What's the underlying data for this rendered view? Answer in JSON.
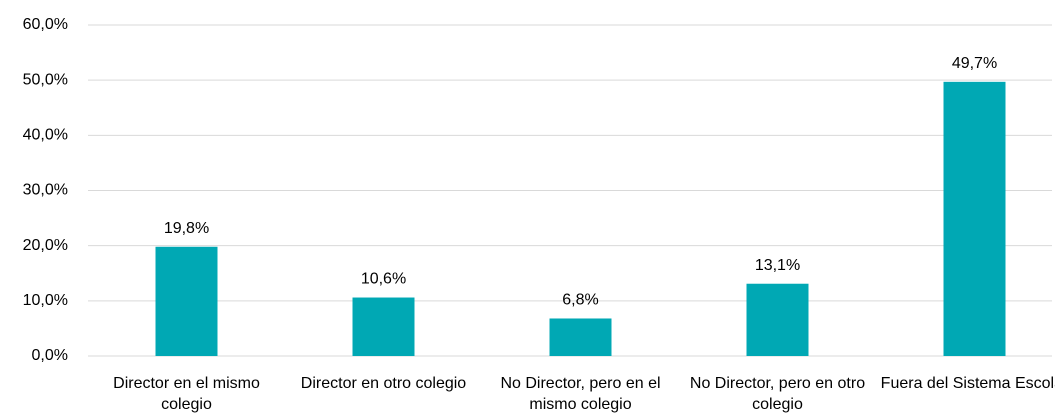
{
  "chart_data": {
    "type": "bar",
    "categories": [
      "Director en el mismo colegio",
      "Director en otro colegio",
      "No Director, pero en el mismo colegio",
      "No Director, pero en otro colegio",
      "Fuera del Sistema Escolar"
    ],
    "values": [
      19.8,
      10.6,
      6.8,
      13.1,
      49.7
    ],
    "value_labels": [
      "19,8%",
      "10,6%",
      "6,8%",
      "13,1%",
      "49,7%"
    ],
    "color": "#00a8b4",
    "ylim": [
      0,
      60
    ],
    "yticks": [
      {
        "value": 0,
        "label": "0,0%"
      },
      {
        "value": 10,
        "label": "10,0%"
      },
      {
        "value": 20,
        "label": "20,0%"
      },
      {
        "value": 30,
        "label": "30,0%"
      },
      {
        "value": 40,
        "label": "40,0%"
      },
      {
        "value": 50,
        "label": "50,0%"
      },
      {
        "value": 60,
        "label": "60,0%"
      }
    ],
    "grid": true
  }
}
